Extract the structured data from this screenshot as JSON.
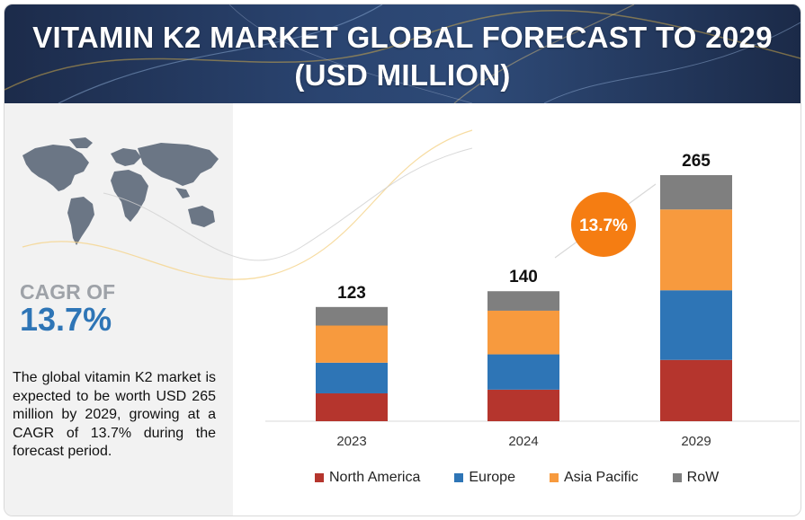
{
  "title_line1": "VITAMIN K2 MARKET GLOBAL FORECAST TO 2029",
  "title_line2": "(USD MILLION)",
  "cagr": {
    "label": "CAGR OF",
    "value": "13.7%",
    "bubble": "13.7%"
  },
  "description": "The global vitamin K2 market is expected to be worth USD 265 million by 2029, growing at a CAGR of 13.7% during the forecast period.",
  "colors": {
    "north_america": "#b5352d",
    "europe": "#2e75b6",
    "asia_pacific": "#f79a3e",
    "row": "#7f7f7f",
    "bubble": "#f57d12",
    "header": "#22375c"
  },
  "icons": [
    "world-map-icon"
  ],
  "chart_data": {
    "type": "bar",
    "stacked": true,
    "categories": [
      "2023",
      "2024",
      "2029"
    ],
    "totals": [
      "123",
      "140",
      "265"
    ],
    "series": [
      {
        "name": "North America",
        "values": [
          30,
          34,
          66
        ]
      },
      {
        "name": "Europe",
        "values": [
          33,
          38,
          75
        ]
      },
      {
        "name": "Asia Pacific",
        "values": [
          40,
          47,
          87
        ]
      },
      {
        "name": "RoW",
        "values": [
          20,
          21,
          37
        ]
      }
    ],
    "ylim": [
      0,
      265
    ],
    "legend_position": "bottom",
    "grid": false
  }
}
